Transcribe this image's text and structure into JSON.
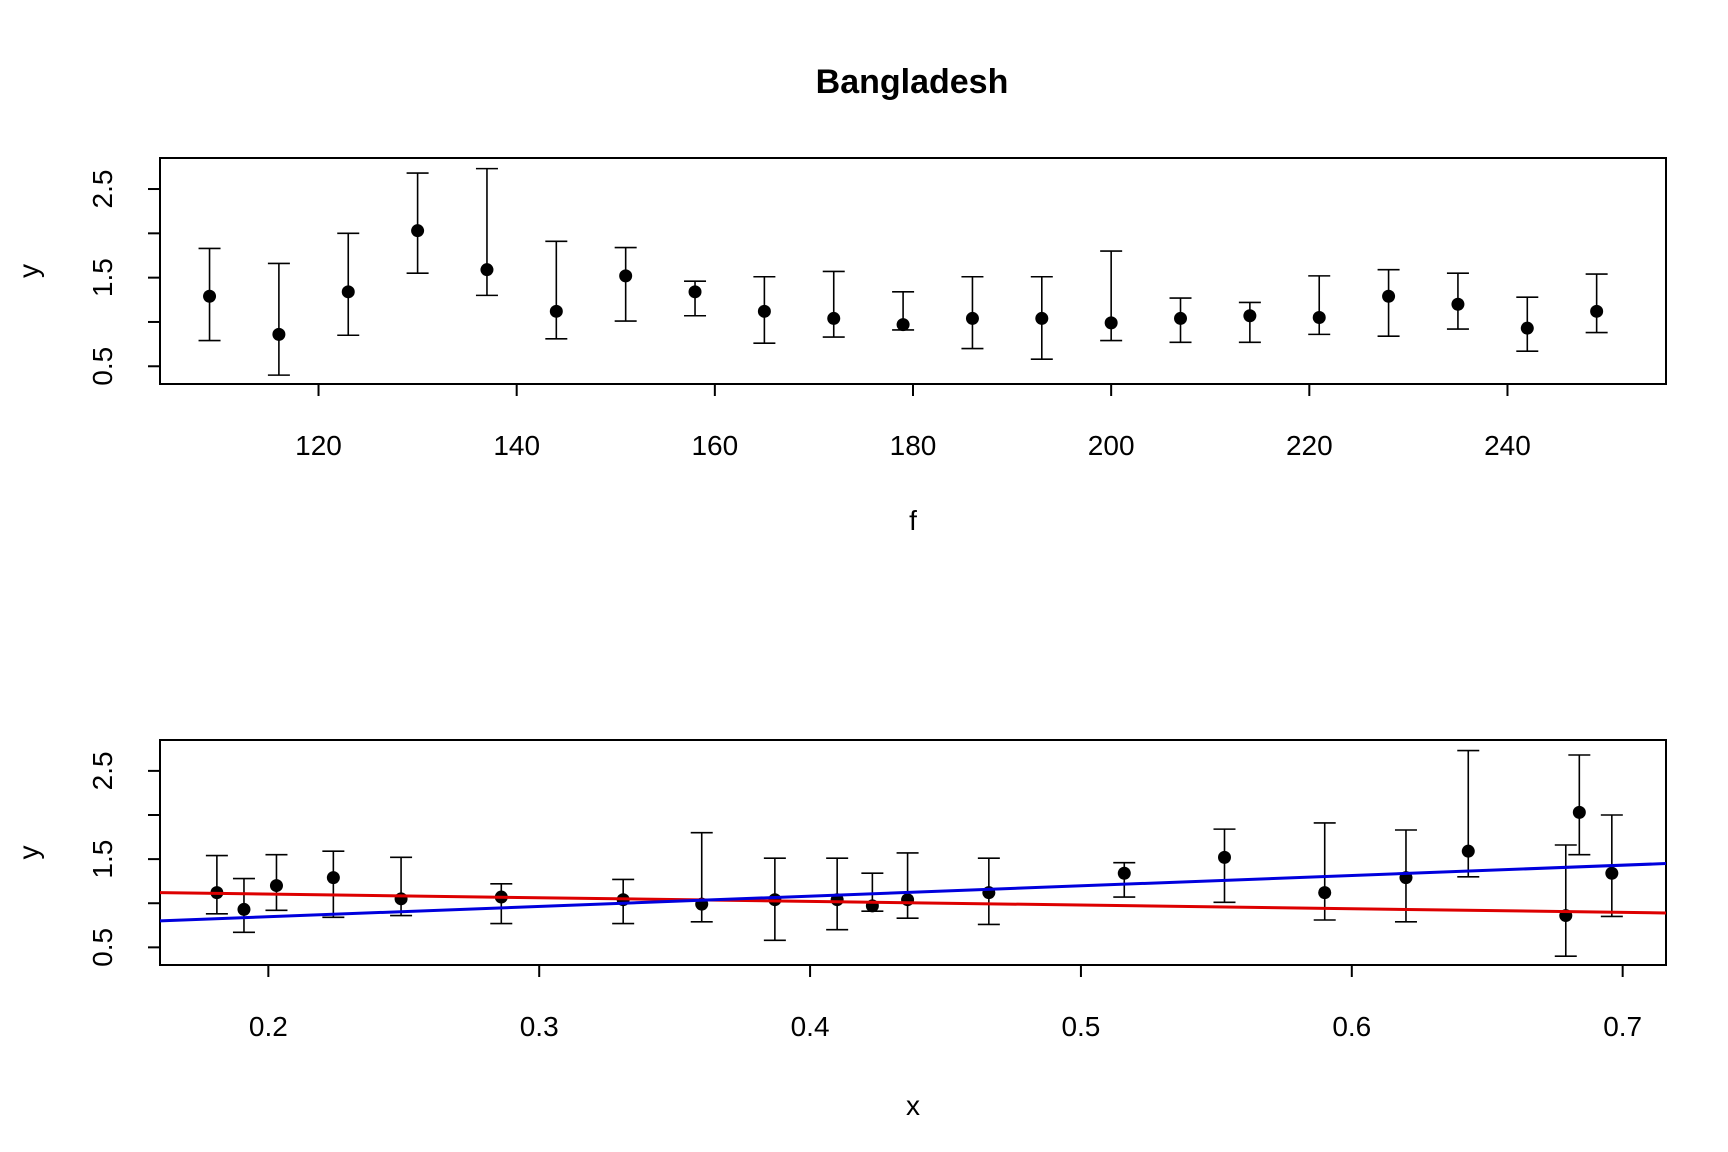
{
  "chart_data": [
    {
      "type": "scatter",
      "title": "Bangladesh",
      "xlabel": "f",
      "ylabel": "y",
      "xlim": [
        104,
        256
      ],
      "ylim": [
        0.3,
        2.85
      ],
      "xticks": [
        "120",
        "140",
        "160",
        "180",
        "200",
        "220",
        "240"
      ],
      "yticks": [
        "0.5",
        "1.5",
        "2.5"
      ],
      "grid": false,
      "legend": "none",
      "marker_color": "#000000",
      "points": [
        {
          "x": 109,
          "y": 1.29,
          "lo": 0.79,
          "hi": 1.83
        },
        {
          "x": 116,
          "y": 0.86,
          "lo": 0.4,
          "hi": 1.66
        },
        {
          "x": 123,
          "y": 1.34,
          "lo": 0.85,
          "hi": 2.0
        },
        {
          "x": 130,
          "y": 2.03,
          "lo": 1.55,
          "hi": 2.68
        },
        {
          "x": 137,
          "y": 1.59,
          "lo": 1.3,
          "hi": 2.73
        },
        {
          "x": 144,
          "y": 1.12,
          "lo": 0.81,
          "hi": 1.91
        },
        {
          "x": 151,
          "y": 1.52,
          "lo": 1.01,
          "hi": 1.84
        },
        {
          "x": 158,
          "y": 1.34,
          "lo": 1.07,
          "hi": 1.46
        },
        {
          "x": 165,
          "y": 1.12,
          "lo": 0.76,
          "hi": 1.51
        },
        {
          "x": 172,
          "y": 1.04,
          "lo": 0.83,
          "hi": 1.57
        },
        {
          "x": 179,
          "y": 0.97,
          "lo": 0.91,
          "hi": 1.34
        },
        {
          "x": 186,
          "y": 1.04,
          "lo": 0.7,
          "hi": 1.51
        },
        {
          "x": 193,
          "y": 1.04,
          "lo": 0.58,
          "hi": 1.51
        },
        {
          "x": 200,
          "y": 0.99,
          "lo": 0.79,
          "hi": 1.8
        },
        {
          "x": 207,
          "y": 1.04,
          "lo": 0.77,
          "hi": 1.27
        },
        {
          "x": 214,
          "y": 1.07,
          "lo": 0.77,
          "hi": 1.22
        },
        {
          "x": 221,
          "y": 1.05,
          "lo": 0.86,
          "hi": 1.52
        },
        {
          "x": 228,
          "y": 1.29,
          "lo": 0.84,
          "hi": 1.59
        },
        {
          "x": 235,
          "y": 1.2,
          "lo": 0.92,
          "hi": 1.55
        },
        {
          "x": 242,
          "y": 0.93,
          "lo": 0.67,
          "hi": 1.28
        },
        {
          "x": 249,
          "y": 1.12,
          "lo": 0.88,
          "hi": 1.54
        }
      ]
    },
    {
      "type": "scatter",
      "title": "",
      "xlabel": "x",
      "ylabel": "y",
      "xlim": [
        0.16,
        0.716
      ],
      "ylim": [
        0.3,
        2.85
      ],
      "xticks": [
        "0.2",
        "0.3",
        "0.4",
        "0.5",
        "0.6",
        "0.7"
      ],
      "yticks": [
        "0.5",
        "1.5",
        "2.5"
      ],
      "grid": false,
      "legend": "none",
      "marker_color": "#000000",
      "points": [
        {
          "x": 0.181,
          "y": 1.12,
          "lo": 0.88,
          "hi": 1.54
        },
        {
          "x": 0.191,
          "y": 0.93,
          "lo": 0.67,
          "hi": 1.28
        },
        {
          "x": 0.203,
          "y": 1.2,
          "lo": 0.92,
          "hi": 1.55
        },
        {
          "x": 0.224,
          "y": 1.29,
          "lo": 0.84,
          "hi": 1.59
        },
        {
          "x": 0.249,
          "y": 1.05,
          "lo": 0.86,
          "hi": 1.52
        },
        {
          "x": 0.286,
          "y": 1.07,
          "lo": 0.77,
          "hi": 1.22
        },
        {
          "x": 0.331,
          "y": 1.04,
          "lo": 0.77,
          "hi": 1.27
        },
        {
          "x": 0.36,
          "y": 0.99,
          "lo": 0.79,
          "hi": 1.8
        },
        {
          "x": 0.387,
          "y": 1.04,
          "lo": 0.58,
          "hi": 1.51
        },
        {
          "x": 0.41,
          "y": 1.04,
          "lo": 0.7,
          "hi": 1.51
        },
        {
          "x": 0.423,
          "y": 0.97,
          "lo": 0.91,
          "hi": 1.34
        },
        {
          "x": 0.436,
          "y": 1.04,
          "lo": 0.83,
          "hi": 1.57
        },
        {
          "x": 0.466,
          "y": 1.12,
          "lo": 0.76,
          "hi": 1.51
        },
        {
          "x": 0.516,
          "y": 1.34,
          "lo": 1.07,
          "hi": 1.46
        },
        {
          "x": 0.553,
          "y": 1.52,
          "lo": 1.01,
          "hi": 1.84
        },
        {
          "x": 0.59,
          "y": 1.12,
          "lo": 0.81,
          "hi": 1.91
        },
        {
          "x": 0.62,
          "y": 1.29,
          "lo": 0.79,
          "hi": 1.83
        },
        {
          "x": 0.643,
          "y": 1.59,
          "lo": 1.3,
          "hi": 2.73
        },
        {
          "x": 0.679,
          "y": 0.86,
          "lo": 0.4,
          "hi": 1.66
        },
        {
          "x": 0.684,
          "y": 2.03,
          "lo": 1.55,
          "hi": 2.68
        },
        {
          "x": 0.696,
          "y": 1.34,
          "lo": 0.85,
          "hi": 2.0
        }
      ],
      "lines": [
        {
          "color": "#dd0000",
          "x": [
            0.16,
            0.716
          ],
          "y": [
            1.12,
            0.89
          ]
        },
        {
          "color": "#0000dd",
          "x": [
            0.16,
            0.716
          ],
          "y": [
            0.8,
            1.45
          ]
        }
      ]
    }
  ]
}
